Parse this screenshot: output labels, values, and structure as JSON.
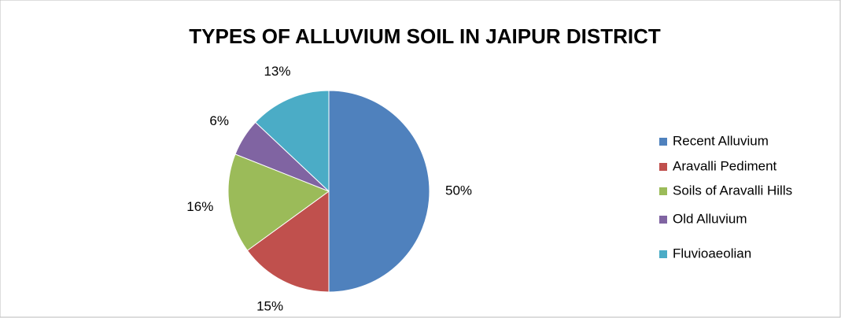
{
  "chart_data": {
    "type": "pie",
    "title": "TYPES OF ALLUVIUM SOIL IN JAIPUR DISTRICT",
    "categories": [
      "Recent Alluvium",
      "Aravalli Pediment",
      "Soils of Aravalli Hills",
      "Old Alluvium",
      "Fluvioaeolian"
    ],
    "values": [
      50,
      15,
      16,
      6,
      13
    ],
    "value_labels": [
      "50%",
      "15%",
      "16%",
      "6%",
      "13%"
    ],
    "colors": [
      "#4f81bd",
      "#c0504d",
      "#9bbb59",
      "#8064a2",
      "#4bacc6"
    ],
    "legend": "right"
  }
}
